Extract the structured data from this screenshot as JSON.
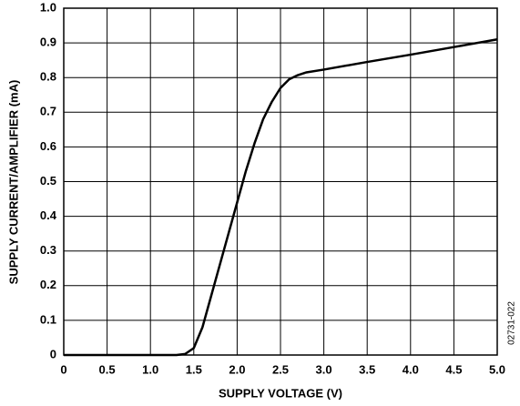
{
  "chart_data": {
    "type": "line",
    "xlabel": "SUPPLY VOLTAGE (V)",
    "ylabel": "SUPPLY CURRENT/AMPLIFIER (mA)",
    "annotation": "02731-022",
    "x": [
      0,
      1.3,
      1.4,
      1.5,
      1.6,
      1.7,
      1.8,
      1.9,
      2.0,
      2.1,
      2.2,
      2.3,
      2.4,
      2.5,
      2.6,
      2.7,
      2.8,
      3.0,
      3.5,
      4.0,
      4.5,
      5.0
    ],
    "series": [
      {
        "color": "#000000",
        "values": [
          0,
          0,
          0.003,
          0.02,
          0.08,
          0.17,
          0.26,
          0.35,
          0.44,
          0.53,
          0.61,
          0.68,
          0.73,
          0.77,
          0.795,
          0.807,
          0.815,
          0.823,
          0.845,
          0.866,
          0.888,
          0.91
        ]
      }
    ],
    "xlim": [
      0,
      5
    ],
    "xticks": [
      0,
      0.5,
      {
        "value": 1,
        "label": "1.0"
      },
      1.5,
      {
        "value": 2,
        "label": "2.0"
      },
      2.5,
      {
        "value": 3,
        "label": "3.0"
      },
      3.5,
      {
        "value": 4,
        "label": "4.0"
      },
      4.5,
      {
        "value": 5,
        "label": "5.0"
      }
    ],
    "ylim": [
      0,
      1
    ],
    "yticks": [
      0,
      0.1,
      0.2,
      0.3,
      0.4,
      0.5,
      0.6,
      0.7,
      0.8,
      0.9,
      {
        "value": 1,
        "label": "1.0"
      }
    ],
    "grid": true
  }
}
